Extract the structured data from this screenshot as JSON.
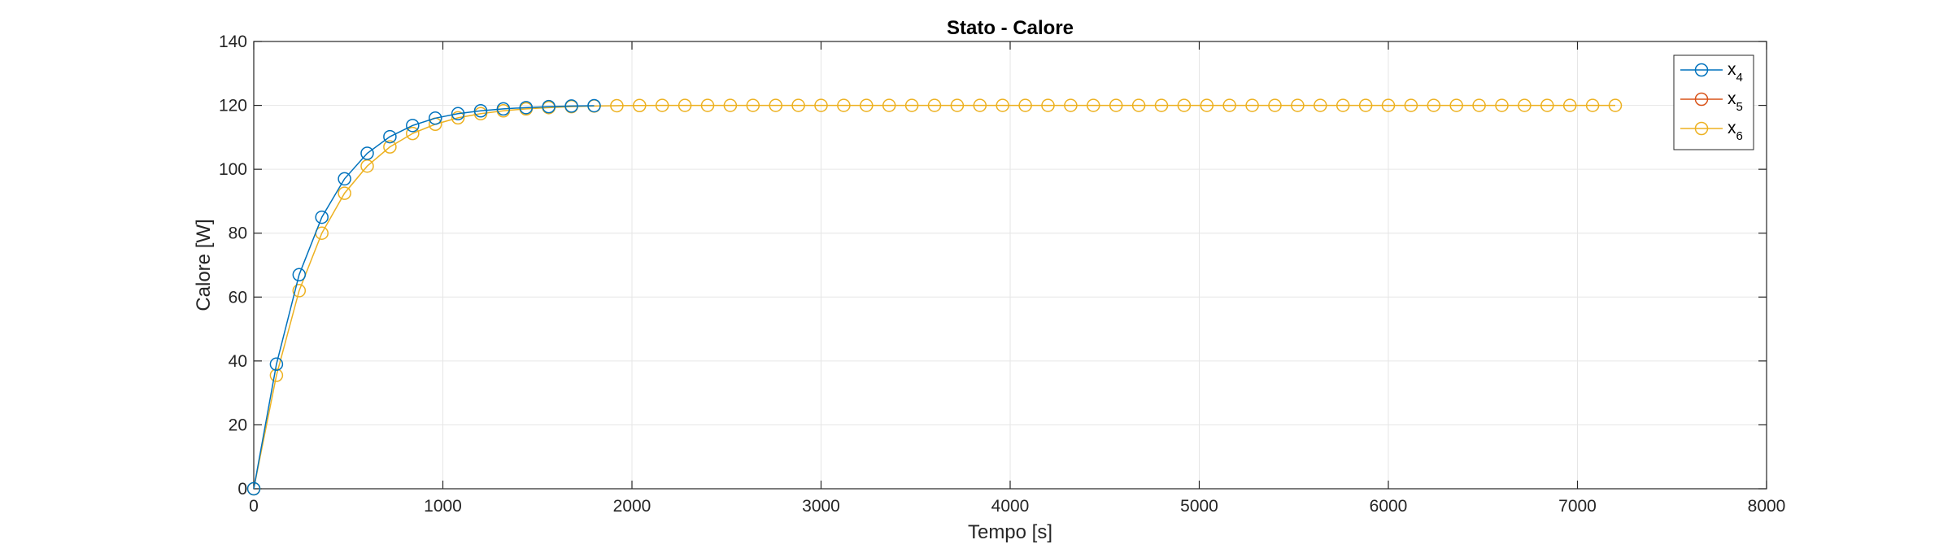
{
  "chart_data": {
    "type": "line",
    "title": "Stato - Calore",
    "xlabel": "Tempo [s]",
    "ylabel": "Calore [W]",
    "xlim": [
      0,
      8000
    ],
    "ylim": [
      0,
      140
    ],
    "x_ticks": [
      0,
      1000,
      2000,
      3000,
      4000,
      5000,
      6000,
      7000,
      8000
    ],
    "y_ticks": [
      0,
      20,
      40,
      60,
      80,
      100,
      120,
      140
    ],
    "grid": true,
    "legend_position": "top-right",
    "series": [
      {
        "name": "x4",
        "legend_base": "x",
        "legend_sub": "4",
        "color": "#0072BD",
        "marker": "circle",
        "x": [
          0,
          120,
          240,
          360,
          480,
          600,
          720,
          840,
          960,
          1080,
          1200,
          1320,
          1440,
          1560,
          1680,
          1800
        ],
        "y": [
          0,
          39,
          67,
          85,
          97,
          105,
          110.2,
          113.7,
          116,
          117.4,
          118.3,
          118.9,
          119.3,
          119.6,
          119.8,
          119.9
        ]
      },
      {
        "name": "x5",
        "legend_base": "x",
        "legend_sub": "5",
        "color": "#D95319",
        "marker": "circle",
        "x": [],
        "y": []
      },
      {
        "name": "x6",
        "legend_base": "x",
        "legend_sub": "6",
        "color": "#EDB120",
        "marker": "circle",
        "x": [
          0,
          120,
          240,
          360,
          480,
          600,
          720,
          840,
          960,
          1080,
          1200,
          1320,
          1440,
          1560,
          1680,
          1800,
          1920,
          2040,
          2160,
          2280,
          2400,
          2520,
          2640,
          2760,
          2880,
          3000,
          3120,
          3240,
          3360,
          3480,
          3600,
          3720,
          3840,
          3960,
          4080,
          4200,
          4320,
          4440,
          4560,
          4680,
          4800,
          4920,
          5040,
          5160,
          5280,
          5400,
          5520,
          5640,
          5760,
          5880,
          6000,
          6120,
          6240,
          6360,
          6480,
          6600,
          6720,
          6840,
          6960,
          7080,
          7200
        ],
        "y": [
          0,
          35.5,
          62,
          80,
          92.5,
          101,
          107,
          111.2,
          114.1,
          116.1,
          117.4,
          118.3,
          118.9,
          119.3,
          119.6,
          119.8,
          119.9,
          119.95,
          120,
          120,
          120,
          120,
          120,
          120,
          120,
          120,
          120,
          120,
          120,
          120,
          120,
          120,
          120,
          120,
          120,
          120,
          120,
          120,
          120,
          120,
          120,
          120,
          120,
          120,
          120,
          120,
          120,
          120,
          120,
          120,
          120,
          120,
          120,
          120,
          120,
          120,
          120,
          120,
          120,
          120,
          120
        ]
      }
    ]
  }
}
